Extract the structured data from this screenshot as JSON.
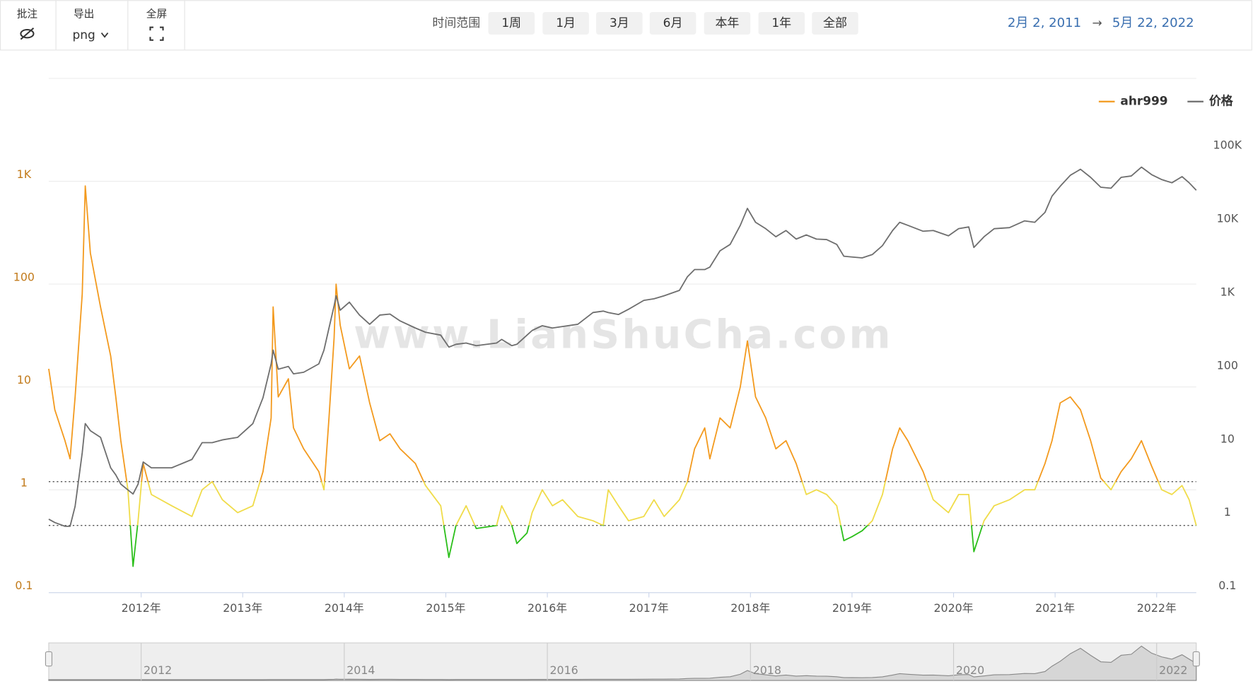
{
  "toolbar": {
    "annotate": "批注",
    "export": "导出",
    "format": "png",
    "fullscreen": "全屏",
    "range_label": "时间范围",
    "range_buttons": [
      "1周",
      "1月",
      "3月",
      "6月",
      "本年",
      "1年",
      "全部"
    ],
    "date_from": "2月 2, 2011",
    "arrow": "→",
    "date_to": "5月 22, 2022"
  },
  "watermark": "www.LianShuCha.com",
  "chart_data": {
    "type": "line",
    "log_scale": true,
    "grid": true,
    "legend": "top-right",
    "x": [
      2011.09,
      2011.15,
      2011.25,
      2011.3,
      2011.35,
      2011.42,
      2011.45,
      2011.5,
      2011.6,
      2011.7,
      2011.75,
      2011.8,
      2011.87,
      2011.92,
      2011.97,
      2012.02,
      2012.1,
      2012.3,
      2012.5,
      2012.6,
      2012.7,
      2012.8,
      2012.95,
      2013.1,
      2013.2,
      2013.28,
      2013.3,
      2013.35,
      2013.45,
      2013.5,
      2013.6,
      2013.75,
      2013.8,
      2013.85,
      2013.9,
      2013.92,
      2013.96,
      2014.05,
      2014.15,
      2014.25,
      2014.35,
      2014.45,
      2014.55,
      2014.7,
      2014.8,
      2014.95,
      2015.03,
      2015.1,
      2015.2,
      2015.3,
      2015.5,
      2015.55,
      2015.65,
      2015.7,
      2015.8,
      2015.85,
      2015.95,
      2016.05,
      2016.15,
      2016.3,
      2016.45,
      2016.55,
      2016.6,
      2016.7,
      2016.8,
      2016.95,
      2017.05,
      2017.15,
      2017.3,
      2017.38,
      2017.45,
      2017.55,
      2017.6,
      2017.7,
      2017.8,
      2017.9,
      2017.97,
      2018.05,
      2018.15,
      2018.25,
      2018.35,
      2018.45,
      2018.55,
      2018.65,
      2018.75,
      2018.85,
      2018.92,
      2019,
      2019.1,
      2019.2,
      2019.3,
      2019.4,
      2019.47,
      2019.55,
      2019.7,
      2019.8,
      2019.95,
      2020.05,
      2020.15,
      2020.2,
      2020.3,
      2020.4,
      2020.55,
      2020.7,
      2020.8,
      2020.9,
      2020.97,
      2021.05,
      2021.15,
      2021.25,
      2021.35,
      2021.45,
      2021.55,
      2021.65,
      2021.75,
      2021.85,
      2021.95,
      2022.05,
      2022.15,
      2022.25,
      2022.32,
      2022.39
    ],
    "series": [
      {
        "name": "ahr999",
        "color": "#f39a1e",
        "values": [
          15,
          6,
          3,
          2,
          8,
          80,
          900,
          200,
          60,
          20,
          8,
          3,
          1.0,
          0.18,
          0.5,
          1.8,
          0.9,
          0.7,
          0.55,
          1.0,
          1.2,
          0.8,
          0.6,
          0.7,
          1.5,
          5,
          60,
          8,
          12,
          4,
          2.5,
          1.5,
          1.0,
          5,
          30,
          100,
          40,
          15,
          20,
          7,
          3,
          3.5,
          2.5,
          1.8,
          1.1,
          0.7,
          0.22,
          0.45,
          0.7,
          0.42,
          0.45,
          0.7,
          0.45,
          0.3,
          0.38,
          0.6,
          1.0,
          0.7,
          0.8,
          0.55,
          0.5,
          0.45,
          1.0,
          0.7,
          0.5,
          0.55,
          0.8,
          0.55,
          0.8,
          1.2,
          2.5,
          4,
          2,
          5,
          4,
          10,
          28,
          8,
          5,
          2.5,
          3,
          1.8,
          0.9,
          1.0,
          0.9,
          0.7,
          0.32,
          0.35,
          0.4,
          0.5,
          0.9,
          2.5,
          4,
          3,
          1.5,
          0.8,
          0.6,
          0.9,
          0.9,
          0.25,
          0.5,
          0.7,
          0.8,
          1.0,
          1.0,
          1.8,
          3,
          7,
          8,
          6,
          3,
          1.3,
          1.0,
          1.5,
          2.0,
          3.0,
          1.7,
          1.0,
          0.9,
          1.1,
          0.8,
          0.45
        ]
      },
      {
        "name": "价格",
        "color": "#6e6e6e",
        "axis": "y2",
        "values": [
          1,
          0.9,
          0.8,
          0.8,
          1.5,
          8,
          20,
          16,
          13,
          5,
          4,
          3,
          2.5,
          2.2,
          3,
          6,
          5,
          5,
          6.5,
          11,
          11,
          12,
          13,
          20,
          45,
          130,
          200,
          110,
          120,
          95,
          100,
          130,
          200,
          400,
          800,
          1100,
          700,
          900,
          600,
          450,
          600,
          620,
          500,
          400,
          350,
          320,
          220,
          240,
          250,
          230,
          250,
          280,
          230,
          240,
          320,
          370,
          430,
          400,
          420,
          450,
          650,
          680,
          650,
          610,
          720,
          950,
          1000,
          1100,
          1300,
          2000,
          2500,
          2500,
          2700,
          4500,
          5500,
          10000,
          17000,
          11000,
          9000,
          7000,
          8500,
          6500,
          7400,
          6500,
          6400,
          5500,
          3800,
          3700,
          3600,
          4000,
          5300,
          8500,
          11000,
          10000,
          8300,
          8500,
          7200,
          9000,
          9500,
          5000,
          7000,
          9000,
          9300,
          11500,
          11000,
          15000,
          25000,
          34000,
          48000,
          58000,
          45000,
          33000,
          32000,
          45000,
          47000,
          62000,
          49000,
          42000,
          38000,
          46000,
          38000,
          30000
        ]
      }
    ],
    "xlim": [
      2011.09,
      2022.39
    ],
    "xticks": [
      {
        "value": 2012,
        "label": "2012年"
      },
      {
        "value": 2013,
        "label": "2013年"
      },
      {
        "value": 2014,
        "label": "2014年"
      },
      {
        "value": 2015,
        "label": "2015年"
      },
      {
        "value": 2016,
        "label": "2016年"
      },
      {
        "value": 2017,
        "label": "2017年"
      },
      {
        "value": 2018,
        "label": "2018年"
      },
      {
        "value": 2019,
        "label": "2019年"
      },
      {
        "value": 2020,
        "label": "2020年"
      },
      {
        "value": 2021,
        "label": "2021年"
      },
      {
        "value": 2022,
        "label": "2022年"
      }
    ],
    "ylim": [
      0.1,
      10000
    ],
    "yticks": [
      0.1,
      1,
      10,
      100,
      {
        "value": 1000,
        "label": "1K"
      }
    ],
    "y2lim": [
      0.1,
      1000000
    ],
    "y2ticks": [
      0.1,
      1,
      10,
      100,
      {
        "value": 1000,
        "label": "1K"
      },
      {
        "value": 10000,
        "label": "10K"
      },
      {
        "value": 100000,
        "label": "100K"
      }
    ],
    "reference_lines": [
      0.45,
      1.2
    ],
    "zone_colors": [
      "#2bbf1a",
      "#f0dc4a",
      "#f39a1e"
    ],
    "navigator": {
      "xticks": [
        2012,
        2014,
        2016,
        2018,
        2020,
        2022
      ]
    }
  }
}
